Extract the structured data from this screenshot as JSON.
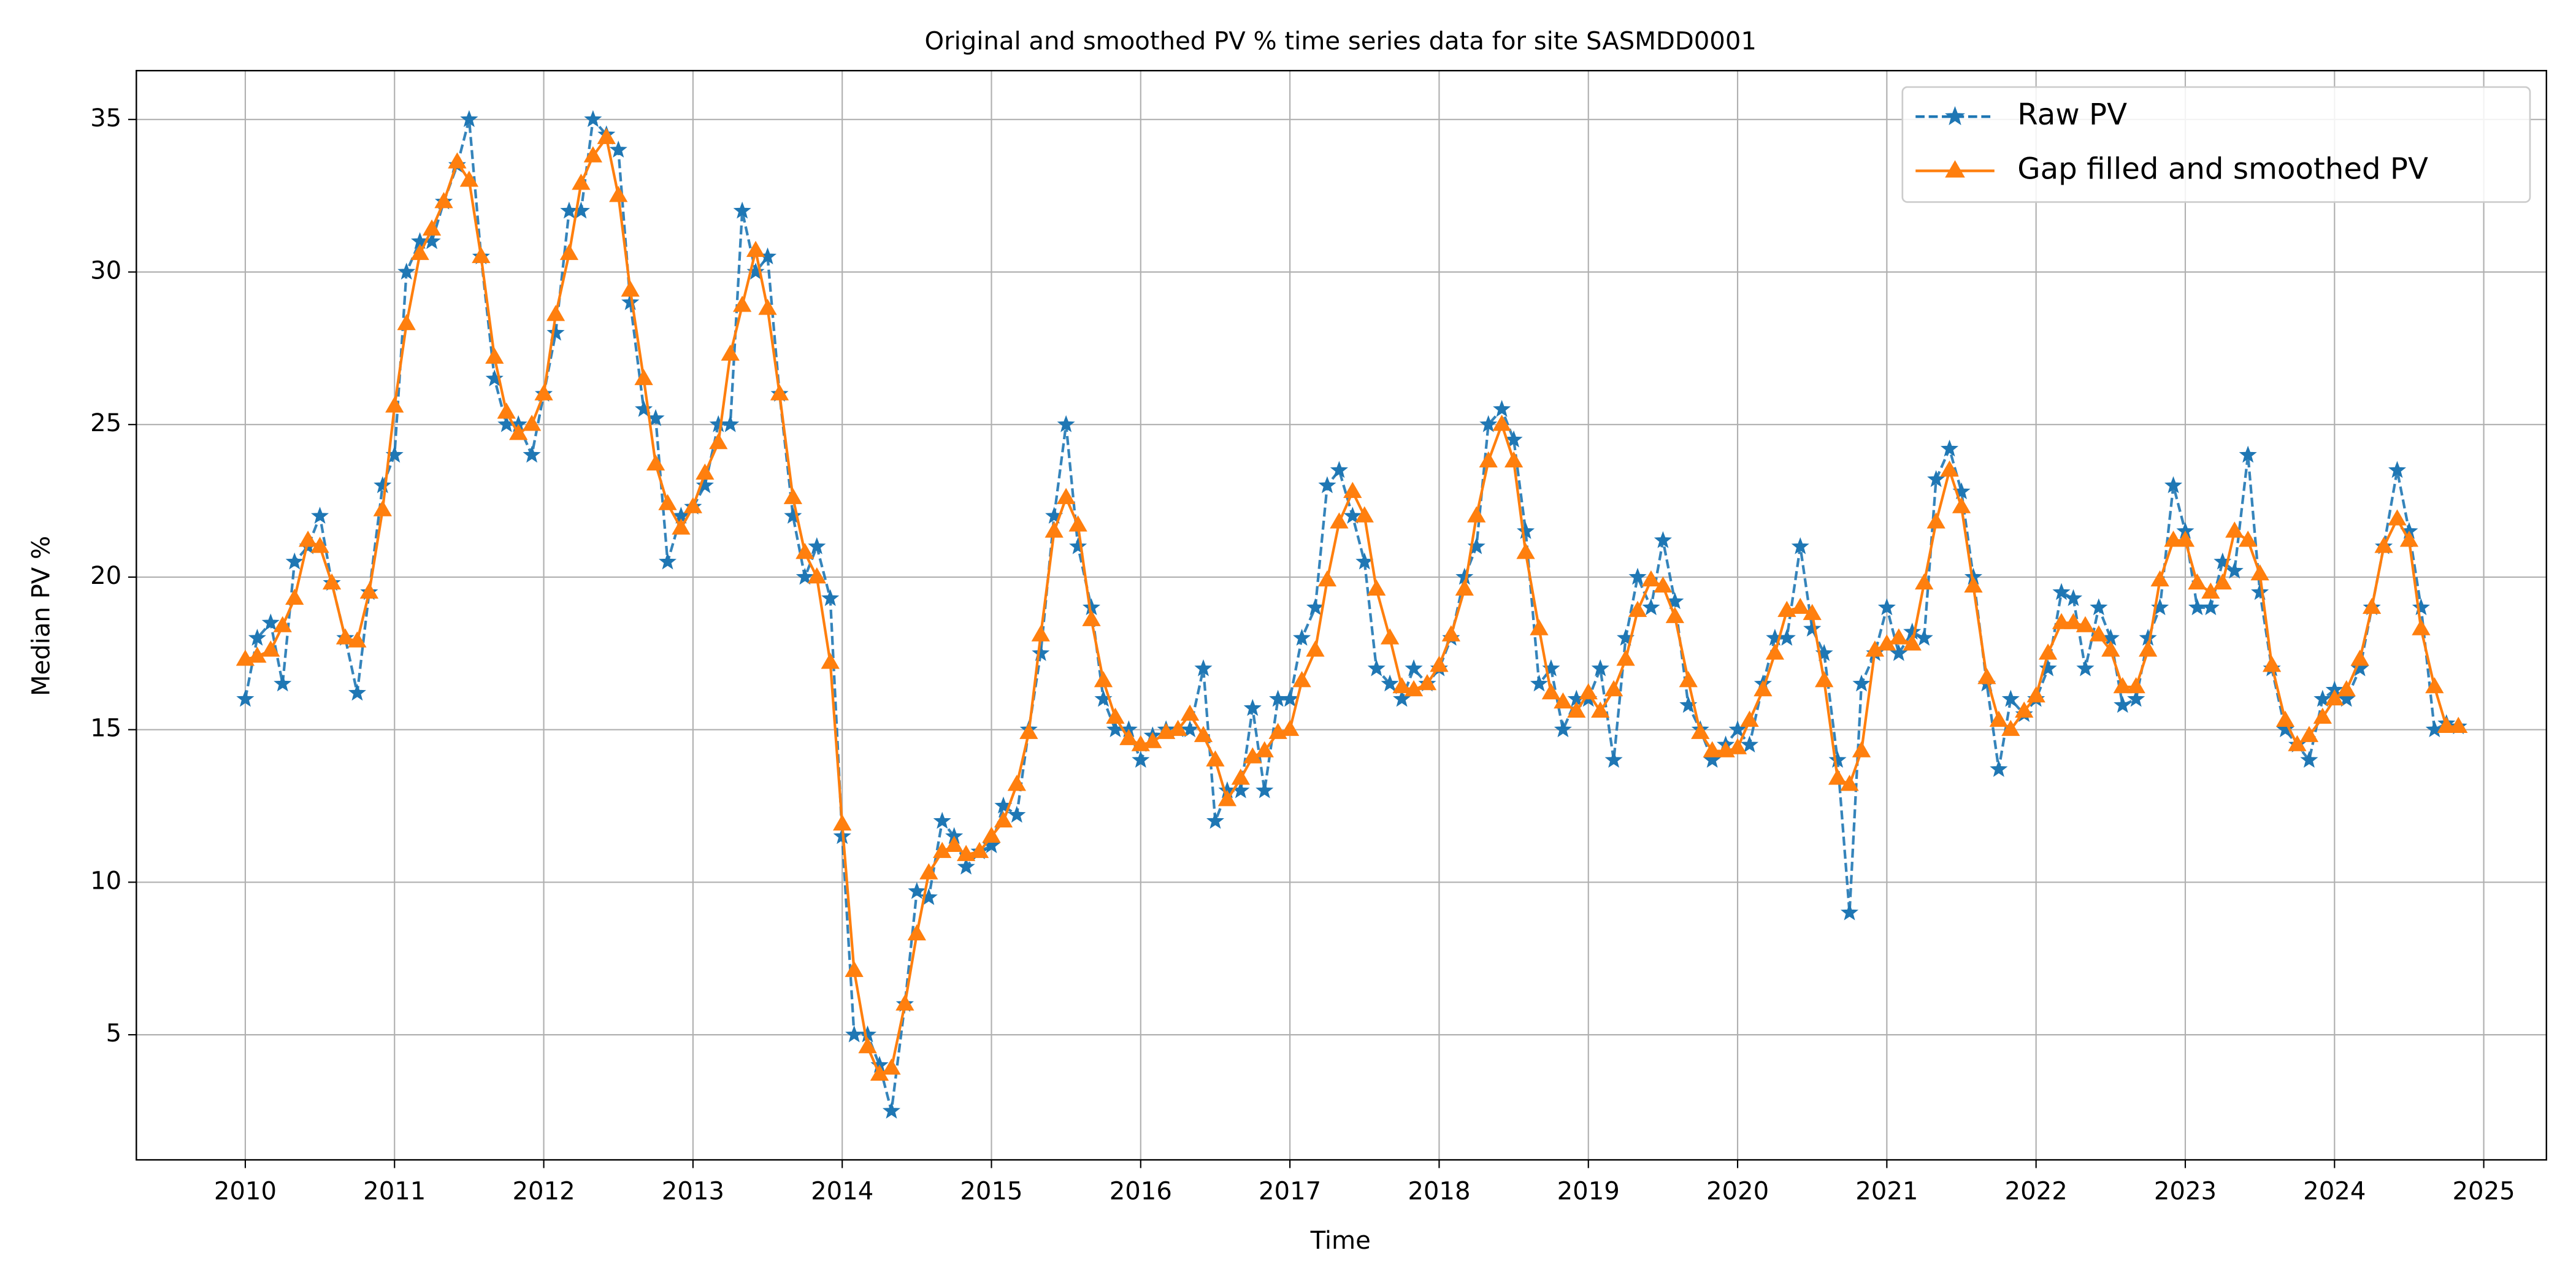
{
  "chart_data": {
    "type": "line",
    "title": "Original and smoothed PV % time series data for site SASMDD0001",
    "x_label": "Time",
    "y_label": "Median PV %",
    "xlim": [
      2009.27,
      2025.42
    ],
    "xticks": [
      2010,
      2011,
      2012,
      2013,
      2014,
      2015,
      2016,
      2017,
      2018,
      2019,
      2020,
      2021,
      2022,
      2023,
      2024,
      2025
    ],
    "ylim": [
      0.9,
      36.6
    ],
    "yticks": [
      5,
      10,
      15,
      20,
      25,
      30,
      35
    ],
    "grid": true,
    "legend": "upper right",
    "x": [
      2010.0,
      2010.08,
      2010.17,
      2010.25,
      2010.33,
      2010.42,
      2010.5,
      2010.58,
      2010.67,
      2010.75,
      2010.83,
      2010.92,
      2011.0,
      2011.08,
      2011.17,
      2011.25,
      2011.33,
      2011.42,
      2011.5,
      2011.58,
      2011.67,
      2011.75,
      2011.83,
      2011.92,
      2012.0,
      2012.08,
      2012.17,
      2012.25,
      2012.33,
      2012.42,
      2012.5,
      2012.58,
      2012.67,
      2012.75,
      2012.83,
      2012.92,
      2013.0,
      2013.08,
      2013.17,
      2013.25,
      2013.33,
      2013.42,
      2013.5,
      2013.58,
      2013.67,
      2013.75,
      2013.83,
      2013.92,
      2014.0,
      2014.08,
      2014.17,
      2014.25,
      2014.33,
      2014.42,
      2014.5,
      2014.58,
      2014.67,
      2014.75,
      2014.83,
      2014.92,
      2015.0,
      2015.08,
      2015.17,
      2015.25,
      2015.33,
      2015.42,
      2015.5,
      2015.58,
      2015.67,
      2015.75,
      2015.83,
      2015.92,
      2016.0,
      2016.08,
      2016.17,
      2016.25,
      2016.33,
      2016.42,
      2016.5,
      2016.58,
      2016.67,
      2016.75,
      2016.83,
      2016.92,
      2017.0,
      2017.08,
      2017.17,
      2017.25,
      2017.33,
      2017.42,
      2017.5,
      2017.58,
      2017.67,
      2017.75,
      2017.83,
      2017.92,
      2018.0,
      2018.08,
      2018.17,
      2018.25,
      2018.33,
      2018.42,
      2018.5,
      2018.58,
      2018.67,
      2018.75,
      2018.83,
      2018.92,
      2019.0,
      2019.08,
      2019.17,
      2019.25,
      2019.33,
      2019.42,
      2019.5,
      2019.58,
      2019.67,
      2019.75,
      2019.83,
      2019.92,
      2020.0,
      2020.08,
      2020.17,
      2020.25,
      2020.33,
      2020.42,
      2020.5,
      2020.58,
      2020.67,
      2020.75,
      2020.83,
      2020.92,
      2021.0,
      2021.08,
      2021.17,
      2021.25,
      2021.33,
      2021.42,
      2021.5,
      2021.58,
      2021.67,
      2021.75,
      2021.83,
      2021.92,
      2022.0,
      2022.08,
      2022.17,
      2022.25,
      2022.33,
      2022.42,
      2022.5,
      2022.58,
      2022.67,
      2022.75,
      2022.83,
      2022.92,
      2023.0,
      2023.08,
      2023.17,
      2023.25,
      2023.33,
      2023.42,
      2023.5,
      2023.58,
      2023.67,
      2023.75,
      2023.83,
      2023.92,
      2024.0,
      2024.08,
      2024.17,
      2024.25,
      2024.33,
      2024.42,
      2024.5,
      2024.58,
      2024.67,
      2024.75,
      2024.83
    ],
    "series": [
      {
        "name": "Raw PV",
        "color": "#1f77b4",
        "line_style": "dashed",
        "marker": "star",
        "values": [
          16,
          18,
          18.5,
          16.5,
          20.5,
          21,
          22,
          19.8,
          18,
          16.2,
          19.5,
          23,
          24,
          30,
          31,
          31,
          32.3,
          33.5,
          35,
          30.5,
          26.5,
          25,
          25,
          24,
          26,
          28,
          32,
          32,
          35,
          34.5,
          34,
          29,
          25.5,
          25.2,
          20.5,
          22,
          22.3,
          23,
          25,
          25,
          32,
          30,
          30.5,
          26,
          22,
          20,
          21,
          19.3,
          11.5,
          5,
          5,
          4,
          2.5,
          6,
          9.7,
          9.5,
          12,
          11.5,
          10.5,
          11,
          11.2,
          12.5,
          12.2,
          15,
          17.5,
          22,
          25,
          21,
          19,
          16,
          15,
          15,
          14,
          14.8,
          15,
          15,
          15,
          17,
          12,
          13,
          13,
          15.7,
          13,
          16,
          16,
          18,
          19,
          23,
          23.5,
          22,
          20.5,
          17,
          16.5,
          16,
          17,
          16.5,
          17,
          18,
          20,
          21,
          25,
          25.5,
          24.5,
          21.5,
          16.5,
          17,
          15,
          16,
          16,
          17,
          14,
          18,
          20,
          19,
          21.2,
          19.2,
          15.8,
          15,
          14,
          14.5,
          15,
          14.5,
          16.5,
          18,
          18,
          21,
          18.3,
          17.5,
          14,
          9,
          16.5,
          17.5,
          19,
          17.5,
          18.2,
          18,
          23.2,
          24.2,
          22.8,
          20,
          16.5,
          13.7,
          16,
          15.5,
          16,
          17,
          19.5,
          19.3,
          17,
          19,
          18,
          15.8,
          16,
          18,
          19,
          23,
          21.5,
          19,
          19,
          20.5,
          20.2,
          24,
          19.5,
          17,
          15,
          14.5,
          14,
          16,
          16.3,
          16,
          17,
          19,
          21,
          23.5,
          21.5,
          19,
          15,
          15.2,
          15.1
        ]
      },
      {
        "name": "Gap filled and smoothed PV",
        "color": "#ff7f0e",
        "line_style": "solid",
        "marker": "triangle",
        "values": [
          17.3,
          17.4,
          17.6,
          18.4,
          19.3,
          21.2,
          21,
          19.8,
          18,
          17.9,
          19.5,
          22.2,
          25.6,
          28.3,
          30.6,
          31.4,
          32.3,
          33.6,
          33,
          30.5,
          27.2,
          25.4,
          24.7,
          25,
          26,
          28.6,
          30.6,
          32.9,
          33.8,
          34.4,
          32.5,
          29.4,
          26.5,
          23.7,
          22.4,
          21.6,
          22.3,
          23.4,
          24.4,
          27.3,
          28.9,
          30.7,
          28.8,
          26,
          22.6,
          20.8,
          20,
          17.2,
          11.9,
          7.1,
          4.6,
          3.7,
          3.9,
          6,
          8.3,
          10.3,
          11,
          11.2,
          10.9,
          11,
          11.5,
          12,
          13.2,
          14.9,
          18.1,
          21.5,
          22.6,
          21.7,
          18.6,
          16.6,
          15.4,
          14.7,
          14.5,
          14.6,
          14.9,
          15,
          15.5,
          14.8,
          14,
          12.7,
          13.4,
          14.1,
          14.3,
          14.9,
          15,
          16.6,
          17.6,
          19.9,
          21.8,
          22.8,
          22,
          19.6,
          18,
          16.4,
          16.3,
          16.5,
          17.1,
          18.1,
          19.6,
          22,
          23.8,
          25,
          23.8,
          20.8,
          18.3,
          16.2,
          15.9,
          15.6,
          16.2,
          15.6,
          16.3,
          17.3,
          18.9,
          19.9,
          19.7,
          18.7,
          16.6,
          14.9,
          14.3,
          14.3,
          14.4,
          15.3,
          16.3,
          17.5,
          18.9,
          19,
          18.8,
          16.6,
          13.4,
          13.2,
          14.3,
          17.6,
          17.8,
          18,
          17.8,
          19.8,
          21.8,
          23.5,
          22.3,
          19.7,
          16.7,
          15.3,
          15,
          15.6,
          16.1,
          17.5,
          18.5,
          18.5,
          18.4,
          18.1,
          17.6,
          16.4,
          16.4,
          17.6,
          19.9,
          21.2,
          21.2,
          19.8,
          19.5,
          19.8,
          21.5,
          21.2,
          20.1,
          17.1,
          15.3,
          14.5,
          14.8,
          15.4,
          16,
          16.3,
          17.3,
          19,
          21,
          21.9,
          21.2,
          18.3,
          16.4,
          15.1,
          15.1
        ]
      }
    ]
  }
}
